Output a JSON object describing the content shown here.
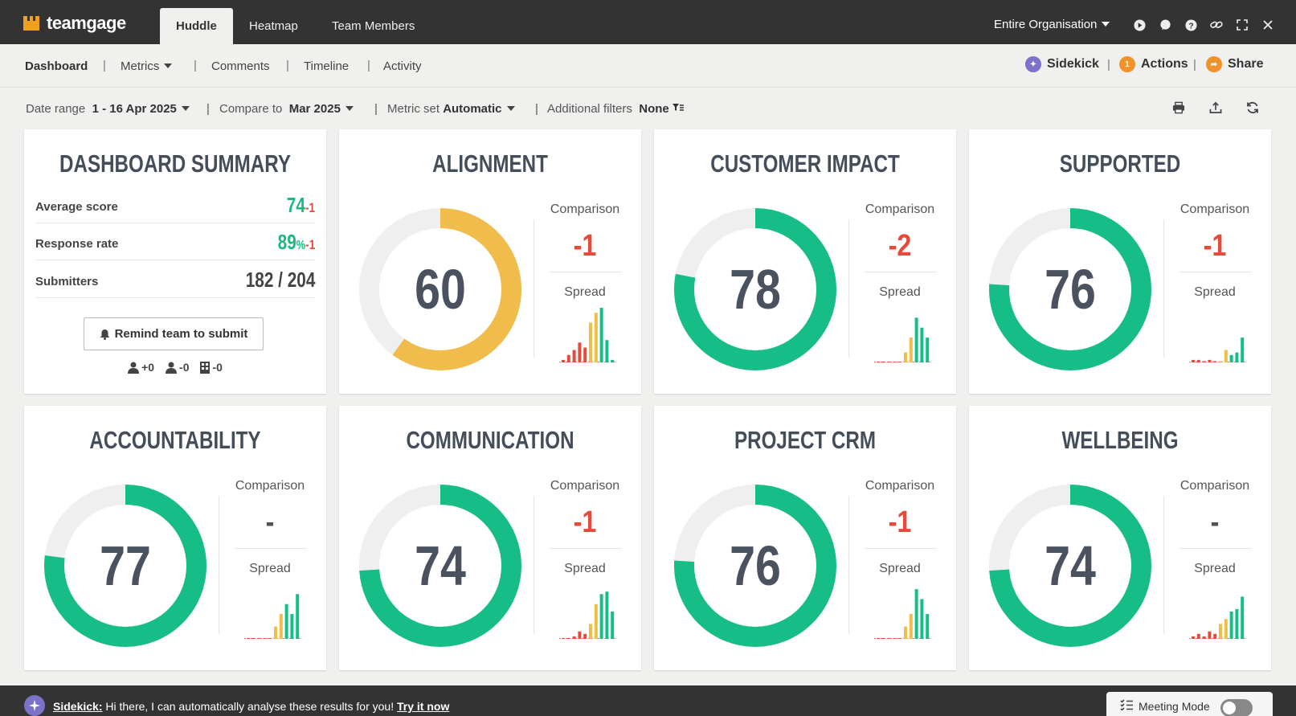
{
  "app": {
    "logo_text": "teamgage",
    "tabs": [
      {
        "label": "Huddle",
        "active": true
      },
      {
        "label": "Heatmap",
        "active": false
      },
      {
        "label": "Team Members",
        "active": false
      }
    ],
    "org_selector": "Entire Organisation",
    "top_icons": [
      "play-icon",
      "chat-icon",
      "help-icon",
      "link-icon",
      "fullscreen-icon",
      "close-icon"
    ]
  },
  "subnav": {
    "items": [
      "Dashboard",
      "Metrics",
      "Comments",
      "Timeline",
      "Activity"
    ],
    "active": "Dashboard",
    "sidekick_label": "Sidekick",
    "actions_label": "Actions",
    "actions_badge": "1",
    "share_label": "Share"
  },
  "filters": {
    "date_range_label": "Date range",
    "date_range_value": "1 - 16 Apr 2025",
    "compare_label": "Compare to",
    "compare_value": "Mar 2025",
    "metric_set_label": "Metric set",
    "metric_set_value": "Automatic",
    "additional_label": "Additional filters",
    "additional_value": "None"
  },
  "summary": {
    "title": "DASHBOARD SUMMARY",
    "average_label": "Average score",
    "average_value": "74",
    "average_delta": "-1",
    "response_label": "Response rate",
    "response_value": "89",
    "response_unit": "%",
    "response_delta": "-1",
    "submitters_label": "Submitters",
    "submitters_value": "182 / 204",
    "remind_button": "Remind team to submit",
    "count_a": "+0",
    "count_b": "-0",
    "count_c": "-0"
  },
  "labels": {
    "comparison": "Comparison",
    "spread": "Spread"
  },
  "metrics": [
    {
      "title": "ALIGNMENT",
      "score": 60,
      "comparison": "-1",
      "color": "#f0bc4c",
      "spread": [
        1,
        3,
        5,
        8,
        6,
        16,
        20,
        22,
        9,
        1
      ]
    },
    {
      "title": "CUSTOMER IMPACT",
      "score": 78,
      "comparison": "-2",
      "color": "#16bd86",
      "spread": [
        0.3,
        0.3,
        0.3,
        0.3,
        0.3,
        4,
        10,
        18,
        14,
        10
      ]
    },
    {
      "title": "SUPPORTED",
      "score": 76,
      "comparison": "-1",
      "color": "#16bd86",
      "spread": [
        1,
        1,
        0.5,
        1,
        0.5,
        0.5,
        5,
        3,
        4,
        10
      ]
    },
    {
      "title": "ACCOUNTABILITY",
      "score": 77,
      "comparison": "-",
      "color": "#16bd86",
      "spread": [
        0.3,
        0.3,
        0.3,
        0.3,
        0.3,
        5,
        10,
        14,
        10,
        18
      ]
    },
    {
      "title": "COMMUNICATION",
      "score": 74,
      "comparison": "-1",
      "color": "#16bd86",
      "spread": [
        0.3,
        0.3,
        1,
        3,
        2,
        6,
        14,
        18,
        19,
        11
      ]
    },
    {
      "title": "PROJECT CRM",
      "score": 76,
      "comparison": "-1",
      "color": "#16bd86",
      "spread": [
        0.3,
        0.3,
        0.3,
        0.3,
        0.3,
        5,
        10,
        20,
        16,
        10
      ]
    },
    {
      "title": "WELLBEING",
      "score": 74,
      "comparison": "-",
      "color": "#16bd86",
      "spread": [
        1,
        2,
        1,
        3,
        2,
        6,
        8,
        11,
        12,
        17
      ]
    }
  ],
  "bottom": {
    "sidekick_link": "Sidekick:",
    "message": " Hi there, I can automatically analyse these results for you! ",
    "try_link": "Try it now",
    "meeting_mode": "Meeting Mode"
  }
}
